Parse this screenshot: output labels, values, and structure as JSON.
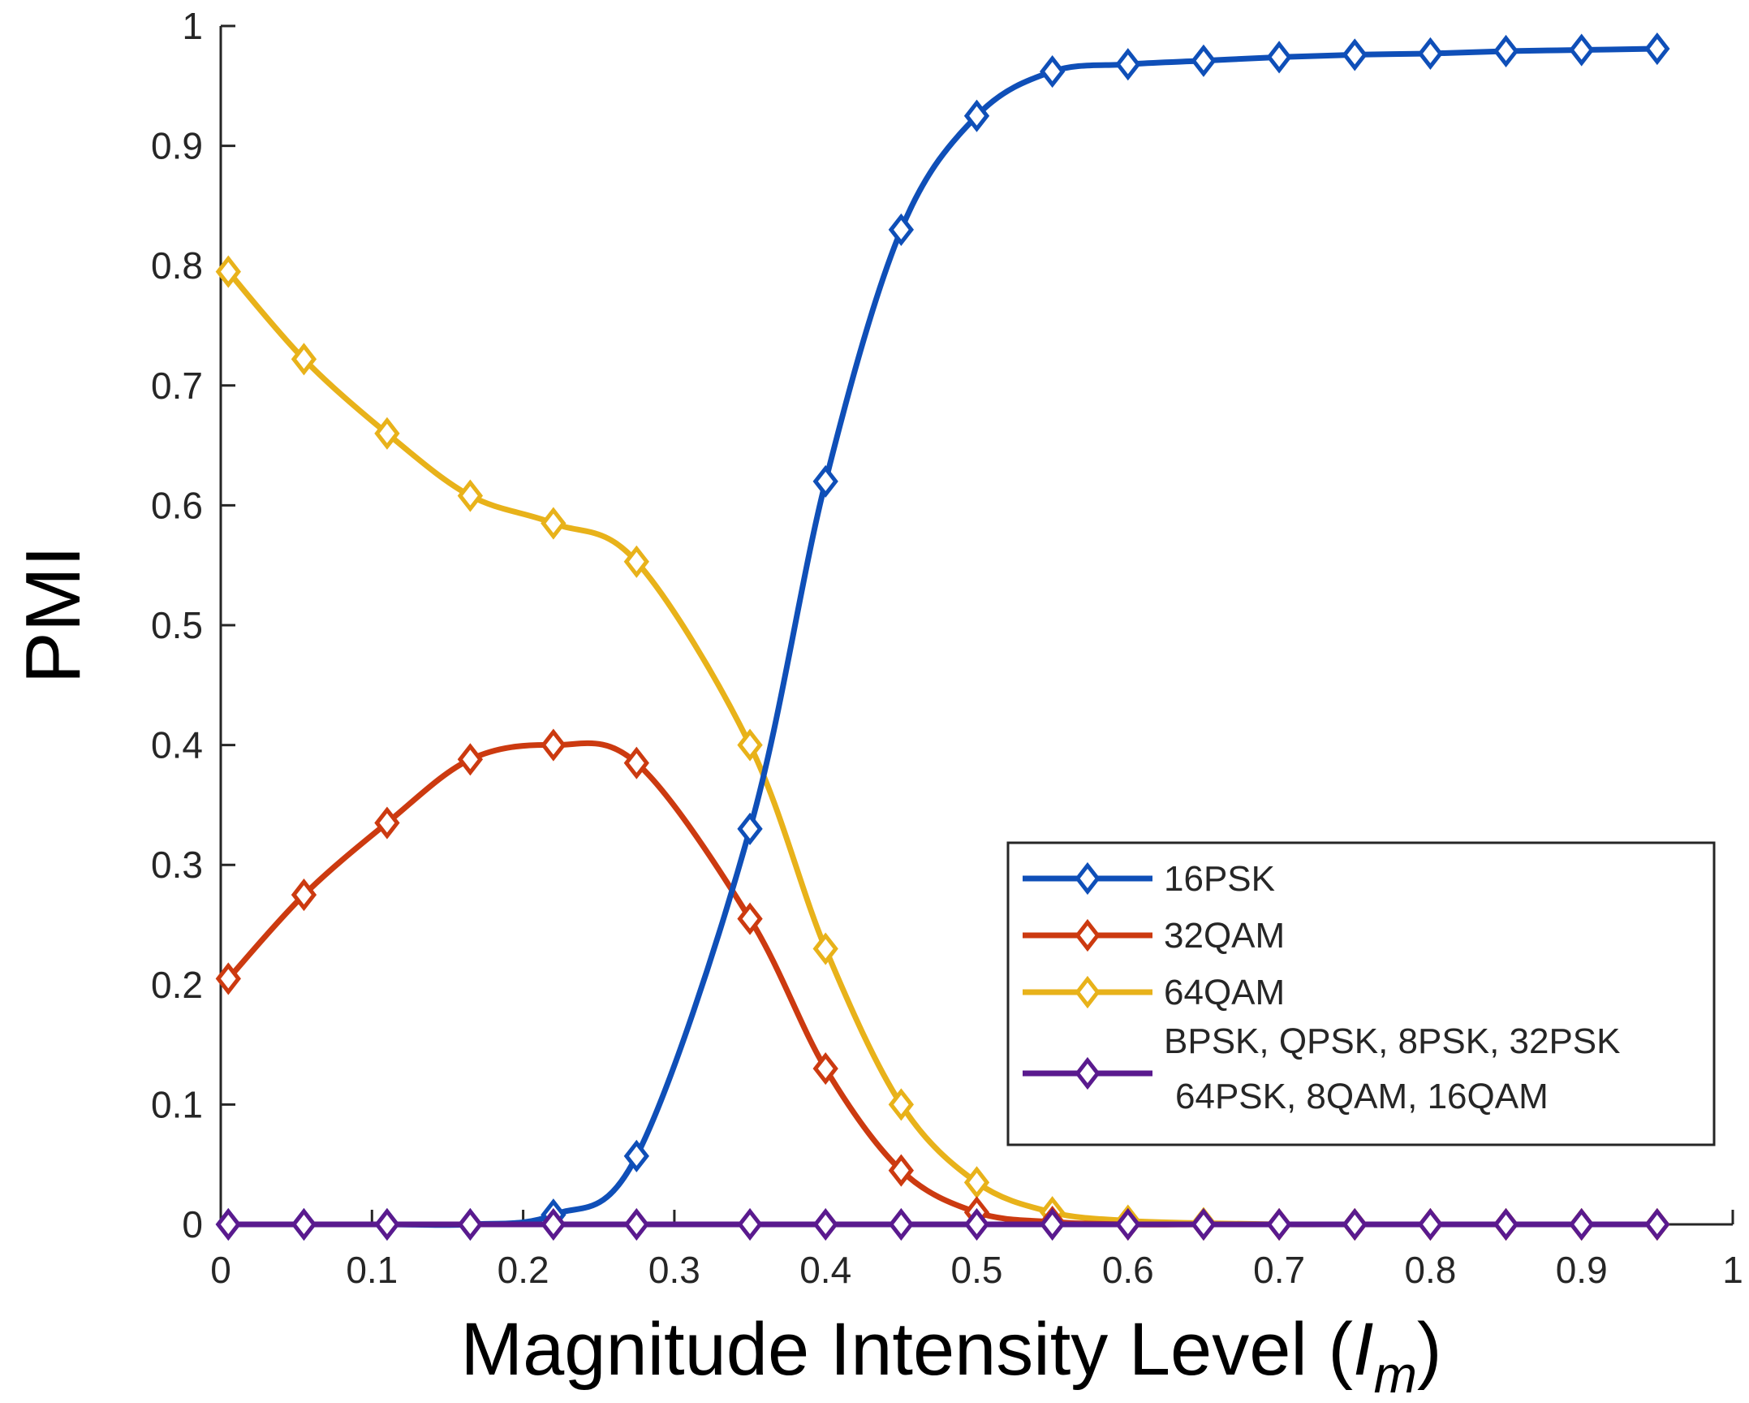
{
  "chart_data": {
    "type": "line",
    "title": "",
    "xlabel": "Magnitude Intensity Level (",
    "xlabel_var": "I",
    "xlabel_sub": "m",
    "xlabel_close": ")",
    "ylabel": "PMI",
    "xlim": [
      0,
      1
    ],
    "ylim": [
      0,
      1
    ],
    "xticks": [
      0,
      0.1,
      0.2,
      0.3,
      0.4,
      0.5,
      0.6,
      0.7,
      0.8,
      0.9,
      1
    ],
    "xtick_labels": [
      "0",
      "0.1",
      "0.2",
      "0.3",
      "0.4",
      "0.5",
      "0.6",
      "0.7",
      "0.8",
      "0.9",
      "1"
    ],
    "yticks": [
      0,
      0.1,
      0.2,
      0.3,
      0.4,
      0.5,
      0.6,
      0.7,
      0.8,
      0.9,
      1
    ],
    "ytick_labels": [
      "0",
      "0.1",
      "0.2",
      "0.3",
      "0.4",
      "0.5",
      "0.6",
      "0.7",
      "0.8",
      "0.9",
      "1"
    ],
    "grid": false,
    "legend_position": "bottom-right",
    "series": [
      {
        "name": "16PSK",
        "legend_lines": [
          "16PSK"
        ],
        "color": "#0f4fb8",
        "x": [
          0.005,
          0.055,
          0.11,
          0.165,
          0.22,
          0.275,
          0.35,
          0.4,
          0.45,
          0.5,
          0.55,
          0.6,
          0.65,
          0.7,
          0.75,
          0.8,
          0.85,
          0.9,
          0.95
        ],
        "y": [
          0.0,
          0.0,
          0.0,
          0.0,
          0.008,
          0.057,
          0.33,
          0.62,
          0.83,
          0.925,
          0.962,
          0.968,
          0.971,
          0.974,
          0.976,
          0.977,
          0.979,
          0.98,
          0.981
        ]
      },
      {
        "name": "32QAM",
        "legend_lines": [
          "32QAM"
        ],
        "color": "#cc3a10",
        "x": [
          0.005,
          0.055,
          0.11,
          0.165,
          0.22,
          0.275,
          0.35,
          0.4,
          0.45,
          0.5,
          0.55,
          0.6,
          0.65,
          0.7,
          0.75,
          0.8,
          0.85,
          0.9,
          0.95
        ],
        "y": [
          0.205,
          0.275,
          0.335,
          0.388,
          0.4,
          0.385,
          0.255,
          0.13,
          0.045,
          0.01,
          0.002,
          0.0,
          0.0,
          0.0,
          0.0,
          0.0,
          0.0,
          0.0,
          0.0
        ]
      },
      {
        "name": "64QAM",
        "legend_lines": [
          "64QAM"
        ],
        "color": "#e8b21a",
        "x": [
          0.005,
          0.055,
          0.11,
          0.165,
          0.22,
          0.275,
          0.35,
          0.4,
          0.45,
          0.5,
          0.55,
          0.6,
          0.65,
          0.7,
          0.75,
          0.8,
          0.85,
          0.9,
          0.95
        ],
        "y": [
          0.795,
          0.722,
          0.66,
          0.608,
          0.585,
          0.553,
          0.4,
          0.23,
          0.1,
          0.035,
          0.01,
          0.003,
          0.001,
          0.0,
          0.0,
          0.0,
          0.0,
          0.0,
          0.0
        ]
      },
      {
        "name": "BPSK, QPSK, 8PSK, 32PSK 64PSK, 8QAM, 16QAM",
        "legend_lines": [
          "BPSK, QPSK, 8PSK, 32PSK",
          "64PSK, 8QAM, 16QAM"
        ],
        "color": "#5a1a8e",
        "x": [
          0.005,
          0.055,
          0.11,
          0.165,
          0.22,
          0.275,
          0.35,
          0.4,
          0.45,
          0.5,
          0.55,
          0.6,
          0.65,
          0.7,
          0.75,
          0.8,
          0.85,
          0.9,
          0.95
        ],
        "y": [
          0,
          0,
          0,
          0,
          0,
          0,
          0,
          0,
          0,
          0,
          0,
          0,
          0,
          0,
          0,
          0,
          0,
          0,
          0
        ]
      }
    ]
  }
}
